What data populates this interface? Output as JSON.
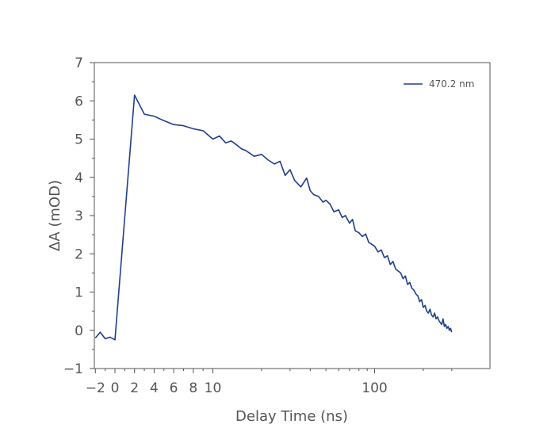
{
  "chart_data": {
    "type": "line",
    "title": "",
    "xlabel": "Delay Time (ns)",
    "ylabel": "ΔA (mOD)",
    "ylim": [
      -1,
      7
    ],
    "x_scale": "symlog",
    "x_tick_labels": [
      "−2",
      "0",
      "2",
      "4",
      "6",
      "8",
      "10",
      "100"
    ],
    "y_tick_labels": [
      "−1",
      "0",
      "1",
      "2",
      "3",
      "4",
      "5",
      "6",
      "7"
    ],
    "grid": false,
    "legend_position": "top-right",
    "line_color": "#1f3f8c",
    "series": [
      {
        "name": "470.2 nm",
        "x": [
          -2.0,
          -1.5,
          -1.0,
          -0.5,
          0.0,
          2.0,
          3.0,
          4.0,
          5.0,
          6.0,
          7.0,
          8.0,
          9.0,
          10.0,
          11.0,
          12.0,
          13.0,
          14.0,
          15.0,
          16.0,
          18.0,
          20.0,
          22.0,
          24.0,
          26.0,
          28.0,
          30.0,
          32.0,
          35.0,
          38.0,
          40.0,
          42.0,
          45.0,
          48.0,
          50.0,
          53.0,
          56.0,
          60.0,
          63.0,
          66.0,
          70.0,
          73.0,
          76.0,
          80.0,
          84.0,
          88.0,
          92.0,
          96.0,
          100.0,
          105.0,
          110.0,
          115.0,
          120.0,
          125.0,
          130.0,
          135.0,
          140.0,
          145.0,
          150.0,
          155.0,
          160.0,
          165.0,
          170.0,
          175.0,
          180.0,
          185.0,
          190.0,
          195.0,
          200.0,
          205.0,
          210.0,
          215.0,
          220.0,
          225.0,
          230.0,
          235.0,
          240.0,
          245.0,
          250.0,
          255.0,
          260.0,
          265.0,
          270.0,
          275.0,
          280.0,
          285.0,
          290.0,
          295.0,
          300.0
        ],
        "values": [
          -0.2,
          -0.05,
          -0.22,
          -0.18,
          -0.25,
          6.15,
          5.65,
          5.6,
          5.48,
          5.38,
          5.35,
          5.27,
          5.22,
          5.0,
          5.08,
          4.9,
          4.95,
          4.85,
          4.75,
          4.7,
          4.55,
          4.6,
          4.45,
          4.35,
          4.42,
          4.05,
          4.2,
          3.92,
          3.75,
          3.98,
          3.65,
          3.55,
          3.5,
          3.35,
          3.4,
          3.3,
          3.1,
          3.15,
          2.95,
          3.0,
          2.8,
          2.9,
          2.6,
          2.55,
          2.45,
          2.52,
          2.3,
          2.25,
          2.2,
          2.05,
          2.1,
          1.9,
          1.95,
          1.72,
          1.8,
          1.6,
          1.55,
          1.5,
          1.35,
          1.42,
          1.2,
          1.25,
          1.1,
          1.05,
          0.95,
          0.9,
          0.75,
          0.8,
          0.6,
          0.65,
          0.5,
          0.45,
          0.55,
          0.4,
          0.35,
          0.45,
          0.3,
          0.35,
          0.25,
          0.2,
          0.15,
          0.3,
          0.1,
          0.15,
          0.05,
          0.1,
          0.0,
          0.05,
          -0.05
        ]
      }
    ]
  }
}
